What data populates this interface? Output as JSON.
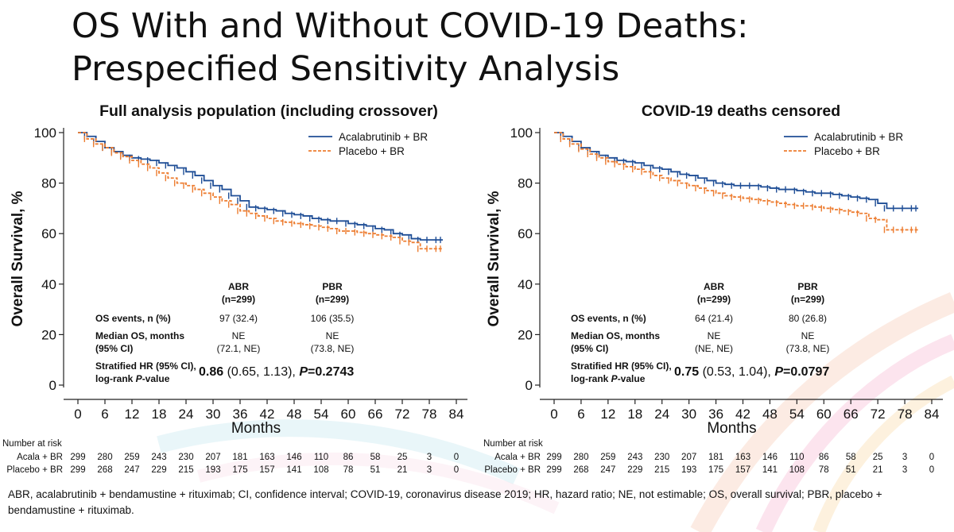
{
  "title": {
    "line1": "OS With and Without COVID-19 Deaths:",
    "line2": "Prespecified Sensitivity Analysis"
  },
  "colors": {
    "abr": "#1f4e96",
    "pbr": "#ed7d31"
  },
  "chart_data": [
    {
      "type": "line",
      "title": "Full analysis population (including crossover)",
      "xlabel": "Months",
      "ylabel": "Overall Survival, %",
      "xlim": [
        0,
        84
      ],
      "ylim": [
        0,
        100
      ],
      "x_ticks": [
        0,
        6,
        12,
        18,
        24,
        30,
        36,
        42,
        48,
        54,
        60,
        66,
        72,
        78,
        84
      ],
      "y_ticks": [
        0,
        20,
        40,
        60,
        80,
        100
      ],
      "legend": [
        "Acalabrutinib + BR",
        "Placebo + BR"
      ],
      "series": [
        {
          "name": "Acalabrutinib + BR",
          "x": [
            0,
            2,
            4,
            6,
            8,
            10,
            12,
            14,
            16,
            18,
            20,
            22,
            24,
            26,
            28,
            30,
            32,
            34,
            36,
            38,
            40,
            42,
            44,
            46,
            48,
            50,
            52,
            54,
            56,
            58,
            60,
            62,
            64,
            66,
            68,
            70,
            72,
            74,
            76,
            78,
            80,
            81
          ],
          "y": [
            100,
            98.5,
            96.5,
            94,
            92.5,
            91,
            90,
            89.5,
            89,
            88,
            87,
            86,
            84.5,
            83,
            81,
            79,
            77.5,
            75,
            73,
            70.5,
            70,
            69.5,
            69,
            68,
            67.5,
            67,
            66,
            65.5,
            65,
            65,
            64,
            63.5,
            63,
            62,
            61.5,
            60,
            59.5,
            58,
            57.5,
            57.5,
            57.5,
            57.5
          ]
        },
        {
          "name": "Placebo + BR",
          "x": [
            0,
            2,
            4,
            6,
            8,
            10,
            12,
            14,
            16,
            18,
            20,
            22,
            24,
            26,
            28,
            30,
            32,
            34,
            36,
            38,
            40,
            42,
            44,
            46,
            48,
            50,
            52,
            54,
            56,
            58,
            60,
            62,
            64,
            66,
            68,
            70,
            72,
            74,
            76,
            78,
            80,
            81
          ],
          "y": [
            100,
            97.5,
            95.5,
            94,
            92,
            90.5,
            89,
            87.5,
            86,
            84,
            82,
            80,
            79,
            77.5,
            76,
            74.5,
            73,
            71.5,
            69,
            68,
            67,
            66,
            65,
            64.5,
            64,
            63.5,
            63,
            62.5,
            62,
            61,
            61,
            60.5,
            60,
            59.5,
            59,
            58.5,
            57,
            56.5,
            54,
            54,
            54,
            54
          ]
        }
      ],
      "stats_table": {
        "col_abr": "ABR",
        "col_abr_n": "(n=299)",
        "col_pbr": "PBR",
        "col_pbr_n": "(n=299)",
        "row1_label": "OS events, n (%)",
        "row1_abr": "97 (32.4)",
        "row1_pbr": "106 (35.5)",
        "row2_label1": "Median OS, months",
        "row2_label2": "(95% CI)",
        "row2_abr1": "NE",
        "row2_abr2": "(72.1, NE)",
        "row2_pbr1": "NE",
        "row2_pbr2": "(73.8, NE)",
        "row3_label1": "Stratified HR (95% CI),",
        "row3_label2_pre": "log-rank ",
        "row3_label2_p": "P",
        "row3_label2_post": "-value",
        "hr": "0.86",
        "ci": " (0.65, 1.13), ",
        "p_label": "P",
        "p_value": "=0.2743"
      },
      "risk_table": {
        "header": "Number at risk",
        "rows": [
          {
            "label": "Acala + BR",
            "values": [
              "299",
              "280",
              "259",
              "243",
              "230",
              "207",
              "181",
              "163",
              "146",
              "110",
              "86",
              "58",
              "25",
              "3",
              "0"
            ]
          },
          {
            "label": "Placebo + BR",
            "values": [
              "299",
              "268",
              "247",
              "229",
              "215",
              "193",
              "175",
              "157",
              "141",
              "108",
              "78",
              "51",
              "21",
              "3",
              "0"
            ]
          }
        ]
      }
    },
    {
      "type": "line",
      "title": "COVID-19 deaths censored",
      "xlabel": "Months",
      "ylabel": "Overall Survival, %",
      "xlim": [
        0,
        84
      ],
      "ylim": [
        0,
        100
      ],
      "x_ticks": [
        0,
        6,
        12,
        18,
        24,
        30,
        36,
        42,
        48,
        54,
        60,
        66,
        72,
        78,
        84
      ],
      "y_ticks": [
        0,
        20,
        40,
        60,
        80,
        100
      ],
      "legend": [
        "Acalabrutinib + BR",
        "Placebo + BR"
      ],
      "series": [
        {
          "name": "Acalabrutinib + BR",
          "x": [
            0,
            2,
            4,
            6,
            8,
            10,
            12,
            14,
            16,
            18,
            20,
            22,
            24,
            26,
            28,
            30,
            32,
            34,
            36,
            38,
            40,
            42,
            44,
            46,
            48,
            50,
            52,
            54,
            56,
            58,
            60,
            62,
            64,
            66,
            68,
            70,
            72,
            74,
            76,
            78,
            80,
            81
          ],
          "y": [
            100,
            98.5,
            96.5,
            94,
            92.5,
            91,
            90,
            89,
            88.5,
            88,
            87,
            86,
            85.5,
            84.5,
            83.5,
            83,
            82,
            81,
            80,
            79.5,
            79,
            79,
            79,
            78.5,
            78,
            77.5,
            77.5,
            77,
            76.5,
            76,
            76,
            75.5,
            75,
            74.5,
            74,
            73.5,
            72,
            70,
            70,
            70,
            70,
            70
          ]
        },
        {
          "name": "Placebo + BR",
          "x": [
            0,
            2,
            4,
            6,
            8,
            10,
            12,
            14,
            16,
            18,
            20,
            22,
            24,
            26,
            28,
            30,
            32,
            34,
            36,
            38,
            40,
            42,
            44,
            46,
            48,
            50,
            52,
            54,
            56,
            58,
            60,
            62,
            64,
            66,
            68,
            70,
            72,
            74,
            76,
            78,
            80,
            81
          ],
          "y": [
            100,
            97.5,
            95.5,
            93.5,
            91.5,
            90,
            88.5,
            87.5,
            86.5,
            85.5,
            84.5,
            83,
            82,
            81,
            80,
            79,
            78,
            77,
            76,
            75,
            74.5,
            74,
            73.5,
            73,
            72.5,
            72,
            71.5,
            71,
            71,
            70.5,
            70,
            69.5,
            69,
            68.5,
            68,
            66,
            65.5,
            61.5,
            61.5,
            61.5,
            61.5,
            61.5
          ]
        }
      ],
      "stats_table": {
        "col_abr": "ABR",
        "col_abr_n": "(n=299)",
        "col_pbr": "PBR",
        "col_pbr_n": "(n=299)",
        "row1_label": "OS events, n (%)",
        "row1_abr": "64 (21.4)",
        "row1_pbr": "80 (26.8)",
        "row2_label1": "Median OS, months",
        "row2_label2": "(95% CI)",
        "row2_abr1": "NE",
        "row2_abr2": "(NE, NE)",
        "row2_pbr1": "NE",
        "row2_pbr2": "(73.8, NE)",
        "row3_label1": "Stratified HR (95% CI),",
        "row3_label2_pre": "log-rank ",
        "row3_label2_p": "P",
        "row3_label2_post": "-value",
        "hr": "0.75",
        "ci": " (0.53, 1.04), ",
        "p_label": "P",
        "p_value": "=0.0797"
      },
      "risk_table": {
        "header": "Number at risk",
        "rows": [
          {
            "label": "Acala + BR",
            "values": [
              "299",
              "280",
              "259",
              "243",
              "230",
              "207",
              "181",
              "163",
              "146",
              "110",
              "86",
              "58",
              "25",
              "3",
              "0"
            ]
          },
          {
            "label": "Placebo + BR",
            "values": [
              "299",
              "268",
              "247",
              "229",
              "215",
              "193",
              "175",
              "157",
              "141",
              "108",
              "78",
              "51",
              "21",
              "3",
              "0"
            ]
          }
        ]
      }
    }
  ],
  "footnote": "ABR, acalabrutinib + bendamustine + rituximab; CI, confidence interval; COVID-19, coronavirus disease 2019; HR, hazard ratio; NE, not estimable; OS, overall survival; PBR, placebo + bendamustine + rituximab."
}
